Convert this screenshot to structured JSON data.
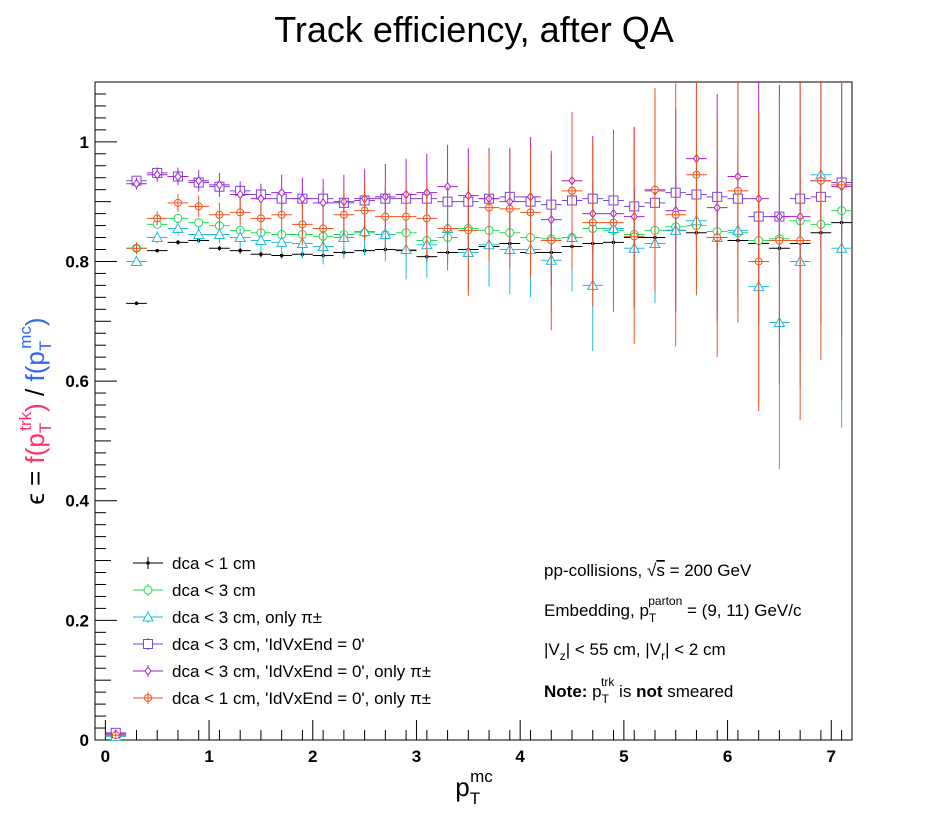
{
  "chart_data": {
    "type": "scatter",
    "title": "Track efficiency, after QA",
    "xlabel": {
      "base": "p",
      "sub": "T",
      "sup": "mc"
    },
    "ylabel": {
      "eps": "ϵ = ",
      "num": {
        "pre": "f(p",
        "sub": "T",
        "sup": "trk",
        "post": ")",
        "color": "#ff3366"
      },
      "sep": " / ",
      "den": {
        "pre": "f(p",
        "sub": "T",
        "sup": "mc",
        "post": ")",
        "color": "#3366ee"
      }
    },
    "xlim": [
      -0.1,
      7.2
    ],
    "ylim": [
      0,
      1.1
    ],
    "xticks": [
      "0",
      "1",
      "2",
      "3",
      "4",
      "5",
      "6",
      "7"
    ],
    "yticks": [
      "0",
      "0.2",
      "0.4",
      "0.6",
      "0.8",
      "1"
    ],
    "legend_position": "bottom-left",
    "series": [
      {
        "name": "dca < 1 cm",
        "color": "#000000",
        "marker": "dot",
        "points": [
          [
            0.1,
            0.01,
            0.005
          ],
          [
            0.3,
            0.73,
            0.003
          ],
          [
            0.5,
            0.818,
            0.003
          ],
          [
            0.7,
            0.832,
            0.004
          ],
          [
            0.9,
            0.835,
            0.004
          ],
          [
            1.1,
            0.822,
            0.004
          ],
          [
            1.3,
            0.818,
            0.005
          ],
          [
            1.5,
            0.812,
            0.005
          ],
          [
            1.7,
            0.81,
            0.005
          ],
          [
            1.9,
            0.812,
            0.006
          ],
          [
            2.1,
            0.81,
            0.006
          ],
          [
            2.3,
            0.815,
            0.007
          ],
          [
            2.5,
            0.818,
            0.007
          ],
          [
            2.7,
            0.82,
            0.008
          ],
          [
            2.9,
            0.818,
            0.008
          ],
          [
            3.1,
            0.808,
            0.009
          ],
          [
            3.3,
            0.815,
            0.01
          ],
          [
            3.5,
            0.82,
            0.01
          ],
          [
            3.7,
            0.825,
            0.011
          ],
          [
            3.9,
            0.83,
            0.012
          ],
          [
            4.1,
            0.815,
            0.013
          ],
          [
            4.3,
            0.815,
            0.014
          ],
          [
            4.5,
            0.825,
            0.015
          ],
          [
            4.7,
            0.83,
            0.016
          ],
          [
            4.9,
            0.832,
            0.017
          ],
          [
            5.1,
            0.84,
            0.018
          ],
          [
            5.3,
            0.84,
            0.019
          ],
          [
            5.5,
            0.852,
            0.02
          ],
          [
            5.7,
            0.848,
            0.021
          ],
          [
            5.9,
            0.84,
            0.022
          ],
          [
            6.1,
            0.835,
            0.023
          ],
          [
            6.3,
            0.83,
            0.024
          ],
          [
            6.5,
            0.822,
            0.025
          ],
          [
            6.7,
            0.83,
            0.026
          ],
          [
            6.9,
            0.848,
            0.027
          ],
          [
            7.1,
            0.865,
            0.028
          ]
        ]
      },
      {
        "name": "dca < 3 cm",
        "color": "#22dd55",
        "marker": "circle",
        "points": [
          [
            0.1,
            0.008,
            0.004
          ],
          [
            0.3,
            0.822,
            0.004
          ],
          [
            0.5,
            0.862,
            0.004
          ],
          [
            0.7,
            0.872,
            0.005
          ],
          [
            0.9,
            0.865,
            0.005
          ],
          [
            1.1,
            0.86,
            0.006
          ],
          [
            1.3,
            0.852,
            0.006
          ],
          [
            1.5,
            0.848,
            0.007
          ],
          [
            1.7,
            0.845,
            0.008
          ],
          [
            1.9,
            0.845,
            0.009
          ],
          [
            2.1,
            0.842,
            0.01
          ],
          [
            2.3,
            0.845,
            0.011
          ],
          [
            2.5,
            0.848,
            0.012
          ],
          [
            2.7,
            0.845,
            0.013
          ],
          [
            2.9,
            0.848,
            0.014
          ],
          [
            3.1,
            0.835,
            0.015
          ],
          [
            3.3,
            0.84,
            0.016
          ],
          [
            3.5,
            0.855,
            0.017
          ],
          [
            3.7,
            0.852,
            0.018
          ],
          [
            3.9,
            0.848,
            0.019
          ],
          [
            4.1,
            0.84,
            0.02
          ],
          [
            4.3,
            0.838,
            0.021
          ],
          [
            4.5,
            0.84,
            0.022
          ],
          [
            4.7,
            0.855,
            0.023
          ],
          [
            4.9,
            0.852,
            0.024
          ],
          [
            5.1,
            0.845,
            0.025
          ],
          [
            5.3,
            0.852,
            0.026
          ],
          [
            5.5,
            0.858,
            0.027
          ],
          [
            5.7,
            0.86,
            0.028
          ],
          [
            5.9,
            0.85,
            0.029
          ],
          [
            6.1,
            0.848,
            0.03
          ],
          [
            6.3,
            0.835,
            0.031
          ],
          [
            6.5,
            0.838,
            0.032
          ],
          [
            6.7,
            0.868,
            0.033
          ],
          [
            6.9,
            0.862,
            0.034
          ],
          [
            7.1,
            0.885,
            0.035
          ]
        ]
      },
      {
        "name": "dca < 3 cm, only π±",
        "color": "#22bbdd",
        "marker": "triangle",
        "points": [
          [
            0.1,
            0.006,
            0.004
          ],
          [
            0.3,
            0.8,
            0.006
          ],
          [
            0.5,
            0.84,
            0.01
          ],
          [
            0.7,
            0.855,
            0.012
          ],
          [
            0.9,
            0.845,
            0.014
          ],
          [
            1.1,
            0.845,
            0.015
          ],
          [
            1.3,
            0.84,
            0.016
          ],
          [
            1.5,
            0.835,
            0.017
          ],
          [
            1.7,
            0.832,
            0.02
          ],
          [
            1.9,
            0.83,
            0.025
          ],
          [
            2.1,
            0.825,
            0.03
          ],
          [
            2.3,
            0.84,
            0.035
          ],
          [
            2.5,
            0.85,
            0.04
          ],
          [
            2.7,
            0.845,
            0.045
          ],
          [
            2.9,
            0.82,
            0.05
          ],
          [
            3.1,
            0.828,
            0.055
          ],
          [
            3.3,
            0.855,
            0.06
          ],
          [
            3.5,
            0.815,
            0.065
          ],
          [
            3.7,
            0.828,
            0.07
          ],
          [
            3.9,
            0.82,
            0.075
          ],
          [
            4.1,
            0.82,
            0.08
          ],
          [
            4.3,
            0.802,
            0.085
          ],
          [
            4.5,
            0.84,
            0.09
          ],
          [
            4.7,
            0.76,
            0.11
          ],
          [
            4.9,
            0.855,
            0.095
          ],
          [
            5.1,
            0.822,
            0.1
          ],
          [
            5.3,
            0.83,
            0.1
          ],
          [
            5.5,
            0.852,
            0.12
          ],
          [
            5.7,
            0.868,
            0.125
          ],
          [
            5.9,
            0.84,
            0.13
          ],
          [
            6.1,
            0.852,
            0.14
          ],
          [
            6.3,
            0.758,
            0.2
          ],
          [
            6.5,
            0.698,
            0.245
          ],
          [
            6.7,
            0.8,
            0.21
          ],
          [
            6.9,
            0.945,
            0.2
          ],
          [
            7.1,
            0.822,
            0.3
          ]
        ]
      },
      {
        "name": "dca < 3 cm, 'IdVxEnd = 0'",
        "color": "#7744dd",
        "marker": "square",
        "points": [
          [
            0.1,
            0.012,
            0.004
          ],
          [
            0.3,
            0.935,
            0.006
          ],
          [
            0.5,
            0.948,
            0.007
          ],
          [
            0.7,
            0.942,
            0.008
          ],
          [
            0.9,
            0.932,
            0.009
          ],
          [
            1.1,
            0.925,
            0.01
          ],
          [
            1.3,
            0.918,
            0.011
          ],
          [
            1.5,
            0.912,
            0.012
          ],
          [
            1.7,
            0.905,
            0.013
          ],
          [
            1.9,
            0.905,
            0.014
          ],
          [
            2.1,
            0.905,
            0.015
          ],
          [
            2.3,
            0.898,
            0.016
          ],
          [
            2.5,
            0.902,
            0.017
          ],
          [
            2.7,
            0.905,
            0.018
          ],
          [
            2.9,
            0.905,
            0.019
          ],
          [
            3.1,
            0.905,
            0.02
          ],
          [
            3.3,
            0.9,
            0.021
          ],
          [
            3.5,
            0.9,
            0.022
          ],
          [
            3.7,
            0.905,
            0.023
          ],
          [
            3.9,
            0.908,
            0.024
          ],
          [
            4.1,
            0.9,
            0.025
          ],
          [
            4.3,
            0.895,
            0.026
          ],
          [
            4.5,
            0.902,
            0.027
          ],
          [
            4.7,
            0.905,
            0.028
          ],
          [
            4.9,
            0.902,
            0.029
          ],
          [
            5.1,
            0.892,
            0.03
          ],
          [
            5.3,
            0.898,
            0.031
          ],
          [
            5.5,
            0.915,
            0.032
          ],
          [
            5.7,
            0.912,
            0.033
          ],
          [
            5.9,
            0.908,
            0.034
          ],
          [
            6.1,
            0.905,
            0.035
          ],
          [
            6.3,
            0.875,
            0.036
          ],
          [
            6.5,
            0.875,
            0.037
          ],
          [
            6.7,
            0.905,
            0.038
          ],
          [
            6.9,
            0.908,
            0.039
          ],
          [
            7.1,
            0.932,
            0.04
          ]
        ]
      },
      {
        "name": "dca < 3 cm, 'IdVxEnd = 0', only π±",
        "color": "#aa22cc",
        "marker": "diamond",
        "points": [
          [
            0.1,
            0.01,
            0.004
          ],
          [
            0.3,
            0.93,
            0.01
          ],
          [
            0.5,
            0.945,
            0.012
          ],
          [
            0.7,
            0.942,
            0.015
          ],
          [
            0.9,
            0.935,
            0.018
          ],
          [
            1.1,
            0.928,
            0.02
          ],
          [
            1.3,
            0.912,
            0.022
          ],
          [
            1.5,
            0.905,
            0.025
          ],
          [
            1.7,
            0.915,
            0.03
          ],
          [
            1.9,
            0.905,
            0.035
          ],
          [
            2.1,
            0.898,
            0.04
          ],
          [
            2.3,
            0.9,
            0.045
          ],
          [
            2.5,
            0.905,
            0.05
          ],
          [
            2.7,
            0.908,
            0.055
          ],
          [
            2.9,
            0.912,
            0.06
          ],
          [
            3.1,
            0.915,
            0.065
          ],
          [
            3.3,
            0.925,
            0.07
          ],
          [
            3.5,
            0.91,
            0.08
          ],
          [
            3.7,
            0.905,
            0.085
          ],
          [
            3.9,
            0.9,
            0.09
          ],
          [
            4.1,
            0.908,
            0.1
          ],
          [
            4.3,
            0.87,
            0.11
          ],
          [
            4.5,
            0.935,
            0.115
          ],
          [
            4.7,
            0.88,
            0.13
          ],
          [
            4.9,
            0.88,
            0.14
          ],
          [
            5.1,
            0.875,
            0.15
          ],
          [
            5.3,
            0.918,
            0.16
          ],
          [
            5.5,
            0.885,
            0.17
          ],
          [
            5.7,
            0.972,
            0.18
          ],
          [
            5.9,
            0.89,
            0.19
          ],
          [
            6.1,
            0.942,
            0.2
          ],
          [
            6.3,
            0.905,
            0.21
          ],
          [
            6.5,
            0.875,
            0.22
          ],
          [
            6.7,
            0.875,
            0.23
          ],
          [
            6.9,
            0.935,
            0.24
          ],
          [
            7.1,
            0.925,
            0.25
          ]
        ]
      },
      {
        "name": "dca < 1 cm, 'IdVxEnd = 0', only π±",
        "color": "#ee5522",
        "marker": "cross",
        "points": [
          [
            0.1,
            0.008,
            0.004
          ],
          [
            0.3,
            0.822,
            0.01
          ],
          [
            0.5,
            0.872,
            0.012
          ],
          [
            0.7,
            0.898,
            0.015
          ],
          [
            0.9,
            0.892,
            0.018
          ],
          [
            1.1,
            0.878,
            0.02
          ],
          [
            1.3,
            0.882,
            0.022
          ],
          [
            1.5,
            0.872,
            0.025
          ],
          [
            1.7,
            0.878,
            0.03
          ],
          [
            1.9,
            0.862,
            0.035
          ],
          [
            2.1,
            0.855,
            0.04
          ],
          [
            2.3,
            0.878,
            0.045
          ],
          [
            2.5,
            0.885,
            0.05
          ],
          [
            2.7,
            0.875,
            0.055
          ],
          [
            2.9,
            0.875,
            0.06
          ],
          [
            3.1,
            0.872,
            0.065
          ],
          [
            3.3,
            0.855,
            0.07
          ],
          [
            3.5,
            0.852,
            0.11
          ],
          [
            3.7,
            0.89,
            0.09
          ],
          [
            3.9,
            0.888,
            0.1
          ],
          [
            4.1,
            0.882,
            0.11
          ],
          [
            4.3,
            0.835,
            0.15
          ],
          [
            4.5,
            0.918,
            0.13
          ],
          [
            4.7,
            0.865,
            0.14
          ],
          [
            4.9,
            0.865,
            0.15
          ],
          [
            5.1,
            0.842,
            0.18
          ],
          [
            5.3,
            0.92,
            0.17
          ],
          [
            5.5,
            0.878,
            0.22
          ],
          [
            5.7,
            0.945,
            0.2
          ],
          [
            5.9,
            0.84,
            0.2
          ],
          [
            6.1,
            0.918,
            0.22
          ],
          [
            6.3,
            0.8,
            0.25
          ],
          [
            6.5,
            0.835,
            0.24
          ],
          [
            6.7,
            0.835,
            0.3
          ],
          [
            6.9,
            0.935,
            0.3
          ],
          [
            7.1,
            0.928,
            0.36
          ]
        ]
      }
    ],
    "annotations": {
      "line1": {
        "pre": "pp-collisions, ",
        "sqrt": "√",
        "s": "s",
        "post": " = 200 GeV"
      },
      "line2": {
        "pre": "Embedding, p",
        "sub": "T",
        "sup": "parton",
        "post": " = (9, 11) GeV/c"
      },
      "line3": {
        "a": "|V",
        "asub": "z",
        "b": "| < 55 cm, |V",
        "bsub": "r",
        "c": "| < 2 cm"
      },
      "line4": {
        "bold1": "Note:",
        "mid1": " p",
        "sub": "T",
        "sup": "trk",
        "mid2": " is ",
        "bold2": "not",
        "post": " smeared"
      }
    }
  }
}
